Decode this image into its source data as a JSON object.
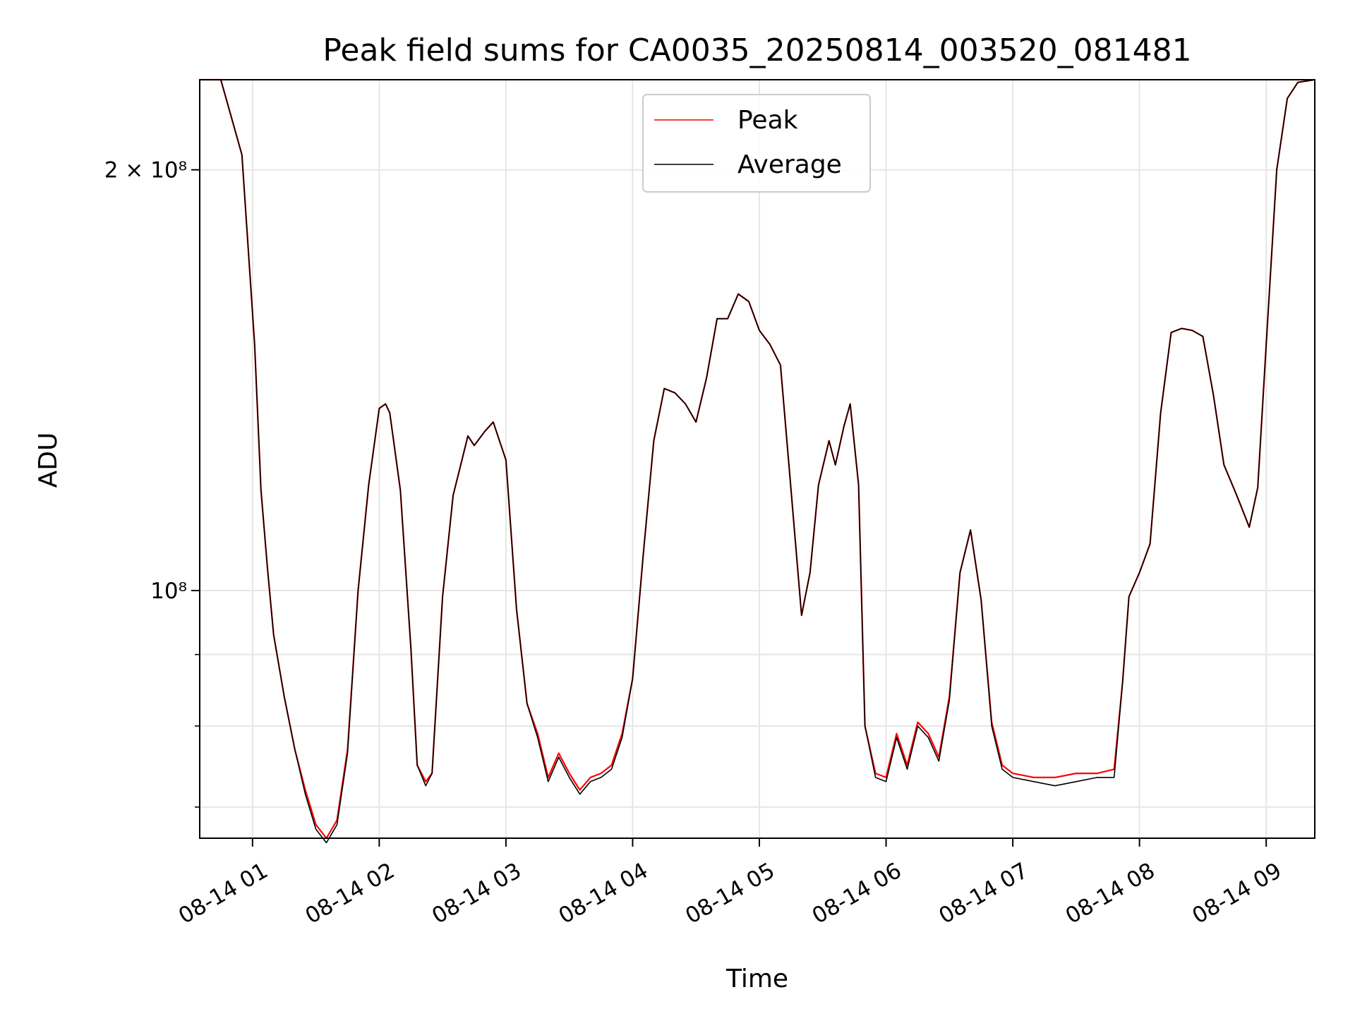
{
  "chart_data": {
    "type": "line",
    "title": "Peak field sums for CA0035_20250814_003520_081481",
    "xlabel": "Time",
    "ylabel": "ADU",
    "x_axis_type": "datetime",
    "x_start": "08-14 00:35",
    "x_end": "08-14 09:23",
    "xlim": [
      "08-14 00:35",
      "08-14 09:23"
    ],
    "x_tick_labels": [
      "08-14 01",
      "08-14 02",
      "08-14 03",
      "08-14 04",
      "08-14 05",
      "08-14 06",
      "08-14 07",
      "08-14 08",
      "08-14 09"
    ],
    "y_scale": "log",
    "ylim": [
      66500000,
      232000000
    ],
    "y_tick_labels": [
      {
        "value": 200000000,
        "label": "2 × 10⁸"
      },
      {
        "value": 100000000,
        "label": "10⁸"
      }
    ],
    "grid": true,
    "legend_position": "top-center",
    "series": [
      {
        "name": "Peak",
        "color": "#ff0000",
        "x": [
          "08-14 00:35",
          "08-14 00:45",
          "08-14 00:55",
          "08-14 01:01",
          "08-14 01:04",
          "08-14 01:07",
          "08-14 01:10",
          "08-14 01:15",
          "08-14 01:20",
          "08-14 01:25",
          "08-14 01:30",
          "08-14 01:35",
          "08-14 01:40",
          "08-14 01:45",
          "08-14 01:50",
          "08-14 01:55",
          "08-14 02:00",
          "08-14 02:03",
          "08-14 02:05",
          "08-14 02:10",
          "08-14 02:15",
          "08-14 02:18",
          "08-14 02:22",
          "08-14 02:25",
          "08-14 02:30",
          "08-14 02:35",
          "08-14 02:38",
          "08-14 02:42",
          "08-14 02:45",
          "08-14 02:50",
          "08-14 02:54",
          "08-14 03:00",
          "08-14 03:05",
          "08-14 03:10",
          "08-14 03:15",
          "08-14 03:20",
          "08-14 03:25",
          "08-14 03:30",
          "08-14 03:35",
          "08-14 03:40",
          "08-14 03:45",
          "08-14 03:50",
          "08-14 03:55",
          "08-14 04:00",
          "08-14 04:05",
          "08-14 04:10",
          "08-14 04:15",
          "08-14 04:20",
          "08-14 04:25",
          "08-14 04:30",
          "08-14 04:35",
          "08-14 04:40",
          "08-14 04:45",
          "08-14 04:50",
          "08-14 04:55",
          "08-14 05:00",
          "08-14 05:05",
          "08-14 05:10",
          "08-14 05:15",
          "08-14 05:20",
          "08-14 05:24",
          "08-14 05:28",
          "08-14 05:33",
          "08-14 05:36",
          "08-14 05:40",
          "08-14 05:43",
          "08-14 05:47",
          "08-14 05:50",
          "08-14 05:55",
          "08-14 06:00",
          "08-14 06:05",
          "08-14 06:10",
          "08-14 06:15",
          "08-14 06:20",
          "08-14 06:25",
          "08-14 06:30",
          "08-14 06:35",
          "08-14 06:40",
          "08-14 06:45",
          "08-14 06:50",
          "08-14 06:55",
          "08-14 07:00",
          "08-14 07:10",
          "08-14 07:20",
          "08-14 07:30",
          "08-14 07:40",
          "08-14 07:48",
          "08-14 07:52",
          "08-14 07:55",
          "08-14 08:00",
          "08-14 08:05",
          "08-14 08:10",
          "08-14 08:15",
          "08-14 08:20",
          "08-14 08:25",
          "08-14 08:30",
          "08-14 08:35",
          "08-14 08:40",
          "08-14 08:45",
          "08-14 08:48",
          "08-14 08:52",
          "08-14 08:56",
          "08-14 09:00",
          "08-14 09:05",
          "08-14 09:10",
          "08-14 09:15",
          "08-14 09:23"
        ],
        "y": [
          232000000,
          232000000,
          205000000,
          150000000,
          118000000,
          104000000,
          93000000,
          84000000,
          77000000,
          72000000,
          68000000,
          66500000,
          68500000,
          77000000,
          100000000,
          119000000,
          135000000,
          136000000,
          134000000,
          118000000,
          91000000,
          75000000,
          73000000,
          74000000,
          99000000,
          117000000,
          122000000,
          129000000,
          127000000,
          130000000,
          132000000,
          124000000,
          97000000,
          83000000,
          79000000,
          73500000,
          76500000,
          74000000,
          72000000,
          73500000,
          74000000,
          75000000,
          79000000,
          86500000,
          106000000,
          128000000,
          139500000,
          138500000,
          136000000,
          132000000,
          142000000,
          156500000,
          156500000,
          163000000,
          161000000,
          153500000,
          150000000,
          145000000,
          118000000,
          96000000,
          103000000,
          119000000,
          128000000,
          123000000,
          131000000,
          136000000,
          119000000,
          80000000,
          74000000,
          73500000,
          79000000,
          75000000,
          80500000,
          79000000,
          76000000,
          84000000,
          103000000,
          110500000,
          98500000,
          80500000,
          75000000,
          74000000,
          73500000,
          73500000,
          74000000,
          74000000,
          74500000,
          86000000,
          99000000,
          103000000,
          108000000,
          134000000,
          153000000,
          154000000,
          153500000,
          152000000,
          138000000,
          123000000,
          118000000,
          115000000,
          111000000,
          118500000,
          150000000,
          200000000,
          225000000,
          231000000,
          232000000
        ]
      },
      {
        "name": "Average",
        "color": "#000000",
        "x": [
          "08-14 00:35",
          "08-14 00:45",
          "08-14 00:55",
          "08-14 01:01",
          "08-14 01:04",
          "08-14 01:07",
          "08-14 01:10",
          "08-14 01:15",
          "08-14 01:20",
          "08-14 01:25",
          "08-14 01:30",
          "08-14 01:35",
          "08-14 01:40",
          "08-14 01:45",
          "08-14 01:50",
          "08-14 01:55",
          "08-14 02:00",
          "08-14 02:03",
          "08-14 02:05",
          "08-14 02:10",
          "08-14 02:15",
          "08-14 02:18",
          "08-14 02:22",
          "08-14 02:25",
          "08-14 02:30",
          "08-14 02:35",
          "08-14 02:38",
          "08-14 02:42",
          "08-14 02:45",
          "08-14 02:50",
          "08-14 02:54",
          "08-14 03:00",
          "08-14 03:05",
          "08-14 03:10",
          "08-14 03:15",
          "08-14 03:20",
          "08-14 03:25",
          "08-14 03:30",
          "08-14 03:35",
          "08-14 03:40",
          "08-14 03:45",
          "08-14 03:50",
          "08-14 03:55",
          "08-14 04:00",
          "08-14 04:05",
          "08-14 04:10",
          "08-14 04:15",
          "08-14 04:20",
          "08-14 04:25",
          "08-14 04:30",
          "08-14 04:35",
          "08-14 04:40",
          "08-14 04:45",
          "08-14 04:50",
          "08-14 04:55",
          "08-14 05:00",
          "08-14 05:05",
          "08-14 05:10",
          "08-14 05:15",
          "08-14 05:20",
          "08-14 05:24",
          "08-14 05:28",
          "08-14 05:33",
          "08-14 05:36",
          "08-14 05:40",
          "08-14 05:43",
          "08-14 05:47",
          "08-14 05:50",
          "08-14 05:55",
          "08-14 06:00",
          "08-14 06:05",
          "08-14 06:10",
          "08-14 06:15",
          "08-14 06:20",
          "08-14 06:25",
          "08-14 06:30",
          "08-14 06:35",
          "08-14 06:40",
          "08-14 06:45",
          "08-14 06:50",
          "08-14 06:55",
          "08-14 07:00",
          "08-14 07:10",
          "08-14 07:20",
          "08-14 07:30",
          "08-14 07:40",
          "08-14 07:48",
          "08-14 07:52",
          "08-14 07:55",
          "08-14 08:00",
          "08-14 08:05",
          "08-14 08:10",
          "08-14 08:15",
          "08-14 08:20",
          "08-14 08:25",
          "08-14 08:30",
          "08-14 08:35",
          "08-14 08:40",
          "08-14 08:45",
          "08-14 08:48",
          "08-14 08:52",
          "08-14 08:56",
          "08-14 09:00",
          "08-14 09:05",
          "08-14 09:10",
          "08-14 09:15",
          "08-14 09:23"
        ],
        "y": [
          232000000,
          232000000,
          205000000,
          150000000,
          118000000,
          104000000,
          93000000,
          84000000,
          77000000,
          71500000,
          67500000,
          66000000,
          68000000,
          76500000,
          100000000,
          119000000,
          135000000,
          136000000,
          134000000,
          118000000,
          91000000,
          75000000,
          72500000,
          74000000,
          99000000,
          117000000,
          122000000,
          129000000,
          127000000,
          130000000,
          132000000,
          124000000,
          97000000,
          83000000,
          78500000,
          73000000,
          76000000,
          73500000,
          71500000,
          73000000,
          73500000,
          74500000,
          78500000,
          86500000,
          106000000,
          128000000,
          139500000,
          138500000,
          136000000,
          132000000,
          142000000,
          156500000,
          156500000,
          163000000,
          161000000,
          153500000,
          150000000,
          145000000,
          118000000,
          96000000,
          103000000,
          119000000,
          128000000,
          123000000,
          131000000,
          136000000,
          119000000,
          80000000,
          73500000,
          73000000,
          78500000,
          74500000,
          80000000,
          78500000,
          75500000,
          83500000,
          103000000,
          110500000,
          98500000,
          80000000,
          74500000,
          73500000,
          73000000,
          72500000,
          73000000,
          73500000,
          73500000,
          86000000,
          99000000,
          103000000,
          108000000,
          134000000,
          153000000,
          154000000,
          153500000,
          152000000,
          138000000,
          123000000,
          118000000,
          115000000,
          111000000,
          118500000,
          150000000,
          200000000,
          225000000,
          231000000,
          232000000
        ]
      }
    ]
  }
}
